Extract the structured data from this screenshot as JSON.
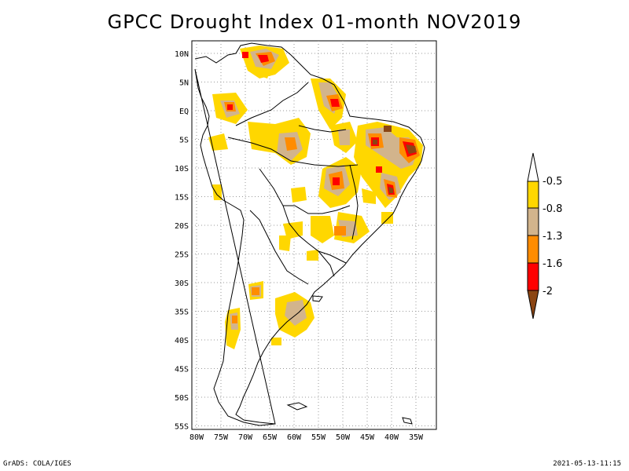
{
  "title": "GPCC Drought Index 01-month NOV2019",
  "footer": {
    "left": "GrADS: COLA/IGES",
    "right": "2021-05-13-11:15"
  },
  "map": {
    "lon_labels": [
      "80W",
      "75W",
      "70W",
      "65W",
      "60W",
      "55W",
      "50W",
      "45W",
      "40W",
      "35W"
    ],
    "lat_labels": [
      "10N",
      "5N",
      "EQ",
      "5S",
      "10S",
      "15S",
      "20S",
      "25S",
      "30S",
      "35S",
      "40S",
      "45S",
      "50S",
      "55S"
    ],
    "region": "South America"
  },
  "legend": {
    "labels": [
      "-0.5",
      "-0.8",
      "-1.3",
      "-1.6",
      "-2"
    ],
    "colors": {
      "upper_arrow": "#ffffff",
      "band1": "#ffd700",
      "band2": "#d2b48c",
      "band3": "#ff8c00",
      "band4": "#ff0000",
      "lower_arrow": "#8b4513"
    }
  }
}
